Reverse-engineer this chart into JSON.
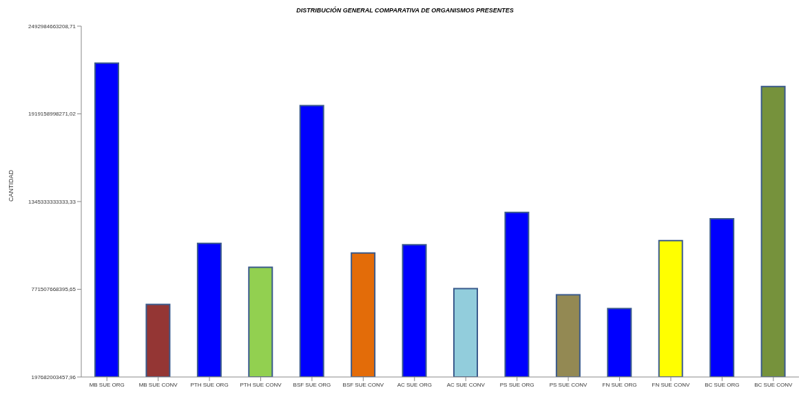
{
  "chart_data": {
    "type": "bar",
    "title": "DISTRIBUCIÓN GENERAL COMPARATIVA DE ORGANISMOS PRESENTES",
    "ylabel": "CANTIDAD",
    "categories": [
      "MB SUE ORG",
      "MB SUE CONV",
      "PTH SUE ORG",
      "PTH SUE CONV",
      "BSF SUE ORG",
      "BSF SUE CONV",
      "AC SUE ORG",
      "AC SUE CONV",
      "PS SUE ORG",
      "PS SUE CONV",
      "FN SUE ORG",
      "FN SUE CONV",
      "BC SUE ORG",
      "BC SUE CONV"
    ],
    "values": [
      2251000000000,
      673000000000,
      1072000000000,
      915000000000,
      1973000000000,
      1009000000000,
      1063000000000,
      776000000000,
      1274000000000,
      736000000000,
      646000000000,
      1090000000000,
      1233000000000,
      2098000000000
    ],
    "colors": [
      "#0000ff",
      "#943634",
      "#0000ff",
      "#92d050",
      "#0000ff",
      "#e36c09",
      "#0000ff",
      "#92cddc",
      "#0000ff",
      "#938953",
      "#0000ff",
      "#ffff00",
      "#0000ff",
      "#76923c"
    ],
    "ylim": [
      197682003457.96,
      2492984663208.71
    ],
    "yticks": [
      {
        "value": 197682003457.96,
        "label": "197682003457,96"
      },
      {
        "value": 771507668395.65,
        "label": "771507668395,65"
      },
      {
        "value": 1345333333333.33,
        "label": "1345333333333,33"
      },
      {
        "value": 1919158998271.02,
        "label": "1919158998271,02"
      },
      {
        "value": 2492984663208.71,
        "label": "2492984663208,71"
      }
    ],
    "grid": false,
    "legend": false
  }
}
